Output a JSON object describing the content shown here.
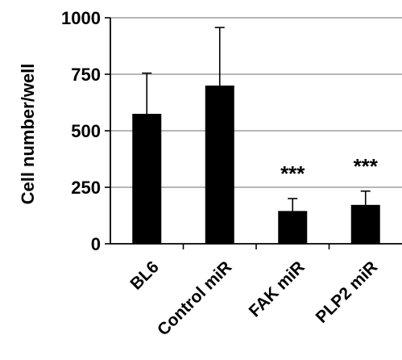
{
  "chart_data": {
    "type": "bar",
    "categories": [
      "BL6",
      "Control miR",
      "FAK miR",
      "PLP2 miR"
    ],
    "values": [
      575,
      700,
      145,
      172
    ],
    "error_upper": [
      755,
      957,
      200,
      233
    ],
    "annotations": [
      "",
      "",
      "***",
      "***"
    ],
    "ylabel": "Cell  number/well",
    "xlabel": "",
    "ylim": [
      0,
      1000
    ],
    "yticks": [
      0,
      250,
      500,
      750,
      1000
    ],
    "grid": true,
    "bar_color": "#000000",
    "grid_color": "#9e9e9e"
  }
}
